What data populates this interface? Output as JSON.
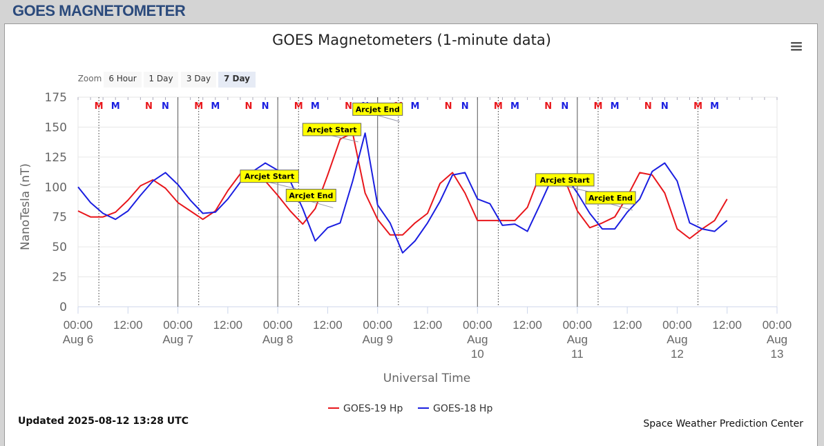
{
  "header": {
    "title": "GOES MAGNETOMETER"
  },
  "chart_data": {
    "type": "line",
    "title": "GOES Magnetometers (1-minute data)",
    "zoom": {
      "label": "Zoom",
      "buttons": [
        "6 Hour",
        "1 Day",
        "3 Day",
        "7 Day"
      ],
      "selected": "7 Day"
    },
    "y_label": "NanoTesla (nT)",
    "x_label": "Universal Time",
    "ylim": [
      0,
      175
    ],
    "yticks": [
      0,
      25,
      50,
      75,
      100,
      125,
      150,
      175
    ],
    "xlim": [
      0,
      168
    ],
    "xticks": [
      {
        "value": 0,
        "label": "00:00 Aug 6"
      },
      {
        "value": 12,
        "label": "12:00"
      },
      {
        "value": 24,
        "label": "00:00 Aug 7"
      },
      {
        "value": 36,
        "label": "12:00"
      },
      {
        "value": 48,
        "label": "00:00 Aug 8"
      },
      {
        "value": 60,
        "label": "12:00"
      },
      {
        "value": 72,
        "label": "00:00 Aug 9"
      },
      {
        "value": 84,
        "label": "12:00"
      },
      {
        "value": 96,
        "label": "00:00 Aug 10"
      },
      {
        "value": 108,
        "label": "12:00"
      },
      {
        "value": 120,
        "label": "00:00 Aug 11"
      },
      {
        "value": 132,
        "label": "12:00"
      },
      {
        "value": 144,
        "label": "00:00 Aug 12"
      },
      {
        "value": 156,
        "label": "12:00"
      },
      {
        "value": 168,
        "label": "00:00 Aug 13"
      }
    ],
    "grid": true,
    "x": [
      0,
      3,
      6,
      9,
      12,
      15,
      18,
      21,
      24,
      27,
      30,
      33,
      36,
      39,
      42,
      45,
      48,
      51,
      54,
      57,
      60,
      63,
      66,
      69,
      72,
      75,
      78,
      81,
      84,
      87,
      90,
      93,
      96,
      99,
      102,
      105,
      108,
      111,
      114,
      117,
      120,
      123,
      126,
      129,
      132,
      135,
      138,
      141,
      144,
      147,
      150,
      153,
      156
    ],
    "series": [
      {
        "name": "GOES-19 Hp",
        "color": "#e8161b",
        "values": [
          80,
          75,
          75,
          79,
          89,
          101,
          106,
          99,
          87,
          80,
          73,
          80,
          97,
          111,
          112,
          105,
          93,
          80,
          69,
          82,
          110,
          140,
          145,
          95,
          73,
          60,
          60,
          70,
          78,
          103,
          112,
          95,
          72,
          72,
          72,
          72,
          83,
          110,
          110,
          106,
          80,
          66,
          70,
          75,
          92,
          112,
          110,
          95,
          65,
          57,
          65,
          72,
          90
        ]
      },
      {
        "name": "GOES-18 Hp",
        "color": "#1a1ee0",
        "values": [
          100,
          87,
          78,
          73,
          80,
          93,
          105,
          112,
          102,
          89,
          78,
          79,
          90,
          104,
          113,
          120,
          114,
          105,
          82,
          55,
          66,
          70,
          105,
          145,
          85,
          70,
          45,
          55,
          70,
          88,
          110,
          112,
          90,
          86,
          68,
          69,
          63,
          85,
          108,
          110,
          95,
          78,
          65,
          65,
          79,
          90,
          113,
          120,
          105,
          70,
          65,
          63,
          72
        ]
      }
    ],
    "plot_lines": {
      "solid": [
        24,
        48,
        72,
        96,
        120
      ],
      "dotted": [
        5,
        29,
        53,
        77,
        101,
        125,
        149
      ]
    },
    "markers": [
      {
        "text": "M",
        "color": "#e8161b",
        "x": 5
      },
      {
        "text": "M",
        "color": "#1a1ee0",
        "x": 9
      },
      {
        "text": "N",
        "color": "#e8161b",
        "x": 17
      },
      {
        "text": "N",
        "color": "#1a1ee0",
        "x": 21
      },
      {
        "text": "M",
        "color": "#e8161b",
        "x": 29
      },
      {
        "text": "M",
        "color": "#1a1ee0",
        "x": 33
      },
      {
        "text": "N",
        "color": "#e8161b",
        "x": 41
      },
      {
        "text": "N",
        "color": "#1a1ee0",
        "x": 45
      },
      {
        "text": "M",
        "color": "#e8161b",
        "x": 53
      },
      {
        "text": "M",
        "color": "#1a1ee0",
        "x": 57
      },
      {
        "text": "N",
        "color": "#e8161b",
        "x": 65
      },
      {
        "text": "N",
        "color": "#1a1ee0",
        "x": 69
      },
      {
        "text": "M",
        "color": "#e8161b",
        "x": 77
      },
      {
        "text": "M",
        "color": "#1a1ee0",
        "x": 81
      },
      {
        "text": "N",
        "color": "#e8161b",
        "x": 89
      },
      {
        "text": "N",
        "color": "#1a1ee0",
        "x": 93
      },
      {
        "text": "M",
        "color": "#e8161b",
        "x": 101
      },
      {
        "text": "M",
        "color": "#1a1ee0",
        "x": 105
      },
      {
        "text": "N",
        "color": "#e8161b",
        "x": 113
      },
      {
        "text": "N",
        "color": "#1a1ee0",
        "x": 117
      },
      {
        "text": "M",
        "color": "#e8161b",
        "x": 125
      },
      {
        "text": "M",
        "color": "#1a1ee0",
        "x": 129
      },
      {
        "text": "N",
        "color": "#e8161b",
        "x": 137
      },
      {
        "text": "N",
        "color": "#1a1ee0",
        "x": 141
      },
      {
        "text": "M",
        "color": "#e8161b",
        "x": 149
      },
      {
        "text": "M",
        "color": "#1a1ee0",
        "x": 153
      }
    ],
    "annotations": [
      {
        "text": "Arcjet Start",
        "x": 46,
        "y": 109
      },
      {
        "text": "Arcjet End",
        "x": 56,
        "y": 93
      },
      {
        "text": "Arcjet Start",
        "x": 61,
        "y": 148
      },
      {
        "text": "Arcjet End",
        "x": 72,
        "y": 165
      },
      {
        "text": "Arcjet Start",
        "x": 117,
        "y": 106
      },
      {
        "text": "Arcjet End",
        "x": 128,
        "y": 91
      }
    ],
    "updated": "Updated 2025-08-12 13:28 UTC",
    "credit": "Space Weather Prediction Center"
  }
}
